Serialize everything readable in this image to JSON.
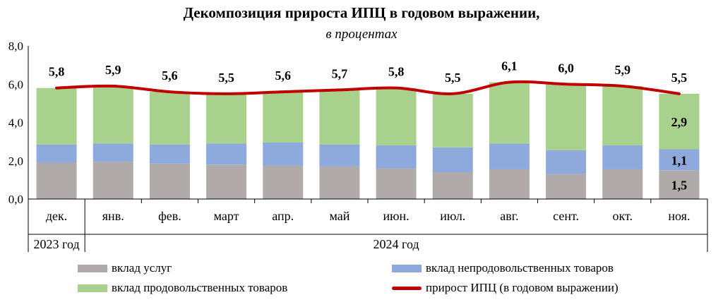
{
  "header": {
    "title": "Декомпозиция прироста ИПЦ в годовом выражении,",
    "subtitle": "в процентах"
  },
  "colors": {
    "services": "#b0aaaa",
    "nonfood": "#8eaadc",
    "food": "#a9d18e",
    "cpi_line": "#c00000"
  },
  "chart_data": {
    "type": "bar",
    "stacked": true,
    "title": "Декомпозиция прироста ИПЦ в годовом выражении,",
    "subtitle": "в процентах",
    "categories": [
      "дек.",
      "янв.",
      "фев.",
      "март",
      "апр.",
      "май",
      "июн.",
      "июл.",
      "авг.",
      "сент.",
      "окт.",
      "ноя."
    ],
    "year_groups": [
      {
        "label": "2023 год",
        "from": 0,
        "to": 0
      },
      {
        "label": "2024 год",
        "from": 1,
        "to": 11
      }
    ],
    "ylim": [
      0,
      8
    ],
    "yticks": [
      "0,0",
      "2,0",
      "4,0",
      "6,0",
      "8,0"
    ],
    "ytick_values": [
      0,
      2,
      4,
      6,
      8
    ],
    "series": [
      {
        "name": "вклад услуг",
        "kind": "bar",
        "values": [
          1.9,
          1.95,
          1.85,
          1.8,
          1.75,
          1.7,
          1.6,
          1.4,
          1.55,
          1.3,
          1.55,
          1.5
        ]
      },
      {
        "name": "вклад непродовольственных товаров",
        "kind": "bar",
        "values": [
          0.95,
          0.95,
          1.0,
          1.1,
          1.2,
          1.15,
          1.2,
          1.3,
          1.35,
          1.25,
          1.25,
          1.1
        ]
      },
      {
        "name": "вклад продовольственных товаров",
        "kind": "bar",
        "values": [
          2.95,
          3.0,
          2.75,
          2.6,
          2.65,
          2.85,
          3.0,
          2.8,
          3.2,
          3.45,
          3.1,
          2.9
        ]
      },
      {
        "name": "прирост ИПЦ (в годовом выражении)",
        "kind": "line",
        "values": [
          5.8,
          5.9,
          5.6,
          5.5,
          5.6,
          5.7,
          5.8,
          5.5,
          6.1,
          6.0,
          5.9,
          5.5
        ]
      }
    ],
    "top_labels": [
      "5,8",
      "5,9",
      "5,6",
      "5,5",
      "5,6",
      "5,7",
      "5,8",
      "5,5",
      "6,1",
      "6,0",
      "5,9",
      "5,5"
    ],
    "segment_labels": [
      {
        "category": "ноя.",
        "series": "вклад услуг",
        "text": "1,5"
      },
      {
        "category": "ноя.",
        "series": "вклад непродовольственных товаров",
        "text": "1,1"
      },
      {
        "category": "ноя.",
        "series": "вклад продовольственных товаров",
        "text": "2,9"
      }
    ],
    "legend": [
      {
        "label": "вклад услуг",
        "kind": "swatch",
        "colorKey": "services"
      },
      {
        "label": "вклад непродовольственных товаров",
        "kind": "swatch",
        "colorKey": "nonfood"
      },
      {
        "label": "вклад продовольственных товаров",
        "kind": "swatch",
        "colorKey": "food"
      },
      {
        "label": "прирост ИПЦ (в годовом выражении)",
        "kind": "line",
        "colorKey": "cpi_line"
      }
    ],
    "legend_position": "bottom",
    "grid": false
  }
}
